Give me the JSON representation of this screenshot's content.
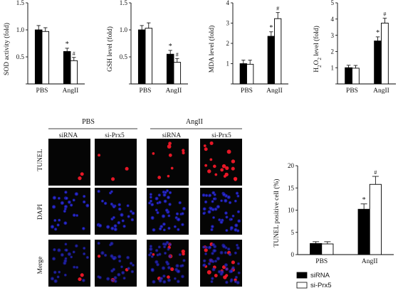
{
  "colors": {
    "siRNA": "#000000",
    "si-Prx5": "#ffffff",
    "stroke": "#000000",
    "nucleus": "#2b2bd0",
    "tunel": "#ff1a2a"
  },
  "chart_data": [
    {
      "type": "bar",
      "id": "sod",
      "categories": [
        "PBS",
        "AngII"
      ],
      "series": [
        {
          "name": "siRNA",
          "values": [
            1.0,
            0.6
          ],
          "errors": [
            0.08,
            0.06
          ]
        },
        {
          "name": "si-Prx5",
          "values": [
            0.97,
            0.43
          ],
          "errors": [
            0.07,
            0.06
          ]
        }
      ],
      "ylabel": "SOD activity (fold)",
      "ylim": [
        0,
        1.5
      ],
      "yticks": [
        0.0,
        0.5,
        1.0,
        1.5
      ],
      "ytick_labels": [
        "",
        "0.5",
        "1.0",
        "1.5"
      ],
      "annotations": [
        {
          "series": 0,
          "category": 1,
          "text": "*"
        },
        {
          "series": 1,
          "category": 1,
          "text": "#"
        }
      ]
    },
    {
      "type": "bar",
      "id": "gsh",
      "categories": [
        "PBS",
        "AngII"
      ],
      "series": [
        {
          "name": "siRNA",
          "values": [
            1.0,
            0.55
          ],
          "errors": [
            0.08,
            0.07
          ]
        },
        {
          "name": "si-Prx5",
          "values": [
            1.03,
            0.4
          ],
          "errors": [
            0.1,
            0.07
          ]
        }
      ],
      "ylabel": "GSH level (fold)",
      "ylim": [
        0,
        1.5
      ],
      "yticks": [
        0.0,
        0.5,
        1.0,
        1.5
      ],
      "ytick_labels": [
        "",
        "0.5",
        "1.0",
        "1.5"
      ],
      "annotations": [
        {
          "series": 0,
          "category": 1,
          "text": "*"
        },
        {
          "series": 1,
          "category": 1,
          "text": "#"
        }
      ]
    },
    {
      "type": "bar",
      "id": "mda",
      "categories": [
        "PBS",
        "AngII"
      ],
      "series": [
        {
          "name": "siRNA",
          "values": [
            1.0,
            2.35
          ],
          "errors": [
            0.17,
            0.22
          ]
        },
        {
          "name": "si-Prx5",
          "values": [
            0.97,
            3.22
          ],
          "errors": [
            0.2,
            0.3
          ]
        }
      ],
      "ylabel": "MDA level (fold)",
      "ylim": [
        0,
        4
      ],
      "yticks": [
        0,
        1,
        2,
        3,
        4
      ],
      "ytick_labels": [
        "",
        "1",
        "2",
        "3",
        "4"
      ],
      "annotations": [
        {
          "series": 0,
          "category": 1,
          "text": "*"
        },
        {
          "series": 1,
          "category": 1,
          "text": "#"
        }
      ]
    },
    {
      "type": "bar",
      "id": "h2o2",
      "categories": [
        "PBS",
        "AngII"
      ],
      "series": [
        {
          "name": "siRNA",
          "values": [
            1.0,
            2.65
          ],
          "errors": [
            0.15,
            0.25
          ]
        },
        {
          "name": "si-Prx5",
          "values": [
            0.97,
            3.75
          ],
          "errors": [
            0.17,
            0.3
          ]
        }
      ],
      "ylabel": "H2O2 level (fold)",
      "ylim": [
        0,
        5
      ],
      "yticks": [
        0,
        1,
        2,
        3,
        4,
        5
      ],
      "ytick_labels": [
        "",
        "1",
        "2",
        "3",
        "4",
        "5"
      ],
      "annotations": [
        {
          "series": 0,
          "category": 1,
          "text": "*"
        },
        {
          "series": 1,
          "category": 1,
          "text": "#"
        }
      ]
    },
    {
      "type": "bar",
      "id": "tunel",
      "categories": [
        "PBS",
        "AngII"
      ],
      "series": [
        {
          "name": "siRNA",
          "values": [
            2.5,
            10.2
          ],
          "errors": [
            0.4,
            1.2
          ]
        },
        {
          "name": "si-Prx5",
          "values": [
            2.4,
            15.8
          ],
          "errors": [
            0.5,
            1.8
          ]
        }
      ],
      "ylabel": "TUNEL positive cell (%)",
      "ylim": [
        0,
        20
      ],
      "yticks": [
        0,
        5,
        10,
        15,
        20
      ],
      "ytick_labels": [
        "0",
        "5",
        "10",
        "15",
        "20"
      ],
      "annotations": [
        {
          "series": 0,
          "category": 1,
          "text": "*"
        },
        {
          "series": 1,
          "category": 1,
          "text": "#"
        }
      ]
    }
  ],
  "micrograph": {
    "group_labels": [
      "PBS",
      "AngII"
    ],
    "column_labels": [
      "siRNA",
      "si-Prx5",
      "siRNA",
      "si-Prx5"
    ],
    "row_labels": [
      "TUNEL",
      "DAPI",
      "Merge"
    ],
    "tunel_cell_counts": [
      2,
      3,
      9,
      18
    ],
    "nuclei_counts": [
      26,
      28,
      42,
      48
    ]
  },
  "legend": {
    "items": [
      {
        "label": "siRNA",
        "fill": "#000000"
      },
      {
        "label": "si-Prx5",
        "fill": "#ffffff"
      }
    ]
  }
}
